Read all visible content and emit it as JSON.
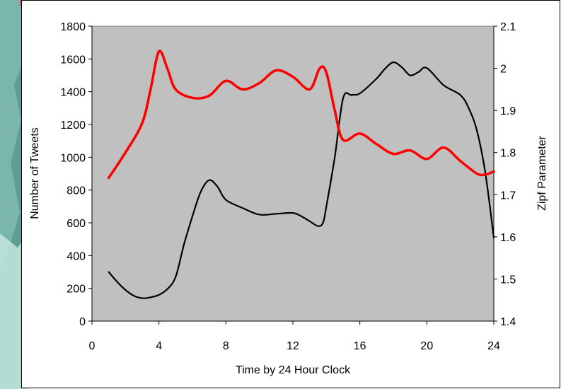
{
  "chart_data": {
    "type": "line",
    "title": "",
    "xlabel": "Time by 24 Hour Clock",
    "ylabel_left": "Number of Tweets",
    "ylabel_right": "Zipf Parameter",
    "xlim": [
      0,
      24
    ],
    "ylim_left": [
      0,
      1800
    ],
    "ylim_right": [
      1.4,
      2.1
    ],
    "x_ticks": [
      0,
      4,
      8,
      12,
      16,
      20,
      24
    ],
    "y_left_ticks": [
      0,
      200,
      400,
      600,
      800,
      1000,
      1200,
      1400,
      1600,
      1800
    ],
    "y_right_ticks": [
      "1.4",
      "1.5",
      "1.6",
      "1.7",
      "1.8",
      "1.9",
      "2",
      "2.1"
    ],
    "grid": false,
    "legend": "none",
    "plot_background": "#c0c0c0",
    "series": [
      {
        "axis": "left",
        "color": "#000000",
        "points": [
          [
            1,
            300
          ],
          [
            1.5,
            240
          ],
          [
            2,
            190
          ],
          [
            2.5,
            155
          ],
          [
            3,
            140
          ],
          [
            3.5,
            145
          ],
          [
            4,
            160
          ],
          [
            4.5,
            195
          ],
          [
            5,
            270
          ],
          [
            5.5,
            470
          ],
          [
            6,
            640
          ],
          [
            6.5,
            790
          ],
          [
            7,
            860
          ],
          [
            7.5,
            820
          ],
          [
            8,
            740
          ],
          [
            9,
            690
          ],
          [
            10,
            650
          ],
          [
            11,
            655
          ],
          [
            12,
            660
          ],
          [
            12.5,
            640
          ],
          [
            13,
            610
          ],
          [
            13.5,
            580
          ],
          [
            13.8,
            600
          ],
          [
            14,
            700
          ],
          [
            14.5,
            1000
          ],
          [
            15,
            1360
          ],
          [
            15.5,
            1380
          ],
          [
            16,
            1390
          ],
          [
            17,
            1480
          ],
          [
            17.5,
            1540
          ],
          [
            18,
            1580
          ],
          [
            18.5,
            1550
          ],
          [
            19,
            1500
          ],
          [
            19.5,
            1520
          ],
          [
            20,
            1545
          ],
          [
            21,
            1440
          ],
          [
            22,
            1380
          ],
          [
            22.5,
            1300
          ],
          [
            23,
            1160
          ],
          [
            23.5,
            900
          ],
          [
            24,
            510
          ]
        ]
      },
      {
        "axis": "right",
        "color": "#ff0000",
        "points": [
          [
            1,
            1.74
          ],
          [
            2,
            1.8
          ],
          [
            3,
            1.87
          ],
          [
            3.5,
            1.95
          ],
          [
            4,
            2.04
          ],
          [
            4.5,
            2.0
          ],
          [
            5,
            1.95
          ],
          [
            6,
            1.93
          ],
          [
            7,
            1.935
          ],
          [
            8,
            1.97
          ],
          [
            9,
            1.95
          ],
          [
            10,
            1.965
          ],
          [
            11,
            1.995
          ],
          [
            12,
            1.98
          ],
          [
            13,
            1.95
          ],
          [
            13.6,
            2.0
          ],
          [
            14,
            1.99
          ],
          [
            14.5,
            1.9
          ],
          [
            15,
            1.83
          ],
          [
            16,
            1.845
          ],
          [
            17,
            1.82
          ],
          [
            18,
            1.797
          ],
          [
            19,
            1.805
          ],
          [
            20,
            1.785
          ],
          [
            21,
            1.812
          ],
          [
            22,
            1.78
          ],
          [
            23,
            1.75
          ],
          [
            23.5,
            1.748
          ],
          [
            24,
            1.755
          ]
        ]
      }
    ]
  }
}
